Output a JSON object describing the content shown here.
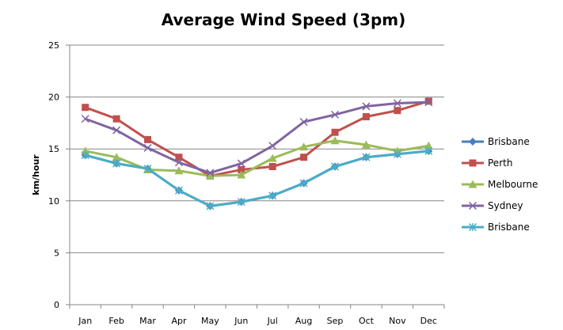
{
  "chart_data": {
    "type": "line",
    "title": "Average Wind Speed (3pm)",
    "xlabel": "",
    "ylabel": "km/hour",
    "categories": [
      "Jan",
      "Feb",
      "Mar",
      "Apr",
      "May",
      "Jun",
      "Jul",
      "Aug",
      "Sep",
      "Oct",
      "Nov",
      "Dec"
    ],
    "ylim": [
      0,
      25
    ],
    "yticks": [
      "0",
      "5",
      "10",
      "15",
      "20",
      "25"
    ],
    "grid": true,
    "legend_position": "right",
    "series": [
      {
        "name": "Brisbane",
        "color": "#4a7ebb",
        "marker": "diamond",
        "values": [
          14.4,
          13.6,
          13.1,
          11.0,
          9.5,
          9.9,
          10.5,
          11.7,
          13.3,
          14.2,
          14.5,
          14.8
        ]
      },
      {
        "name": "Perth",
        "color": "#c0504d",
        "marker": "square",
        "values": [
          19.0,
          17.9,
          15.9,
          14.2,
          12.4,
          13.0,
          13.3,
          14.2,
          16.6,
          18.1,
          18.7,
          19.6
        ]
      },
      {
        "name": "Melbourne",
        "color": "#9bbb59",
        "marker": "triangle",
        "values": [
          14.8,
          14.2,
          13.0,
          12.9,
          12.4,
          12.5,
          14.1,
          15.2,
          15.8,
          15.4,
          14.8,
          15.3
        ]
      },
      {
        "name": "Sydney",
        "color": "#8064a2",
        "marker": "x",
        "values": [
          17.9,
          16.8,
          15.1,
          13.7,
          12.7,
          13.6,
          15.3,
          17.6,
          18.3,
          19.1,
          19.4,
          19.5
        ]
      },
      {
        "name": "Brisbane",
        "color": "#4bacc6",
        "marker": "star",
        "values": [
          14.4,
          13.6,
          13.1,
          11.0,
          9.5,
          9.9,
          10.5,
          11.7,
          13.3,
          14.2,
          14.5,
          14.8
        ]
      }
    ]
  }
}
